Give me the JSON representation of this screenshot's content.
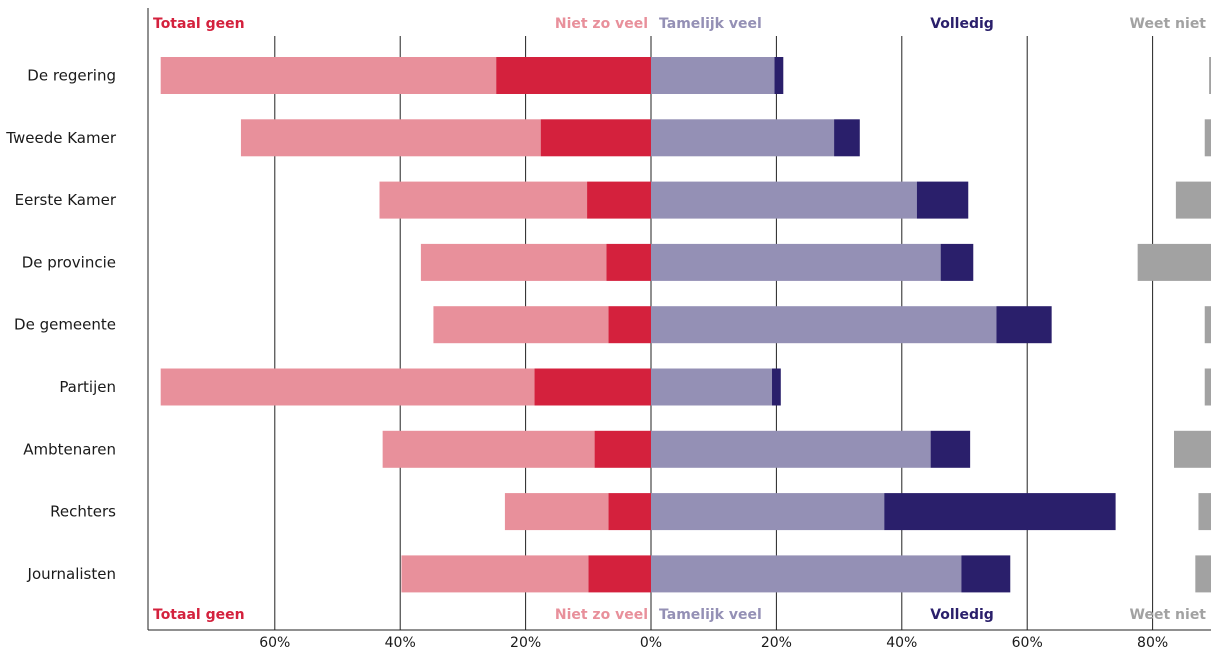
{
  "chart_data": {
    "type": "bar",
    "orientation": "horizontal-diverging",
    "stacked": true,
    "title": "",
    "xlabel": "",
    "ylabel": "",
    "categories": [
      "De regering",
      "Tweede Kamer",
      "Eerste Kamer",
      "De provincie",
      "De gemeente",
      "Partijen",
      "Ambtenaren",
      "Rechters",
      "Journalisten"
    ],
    "negative_series": [
      {
        "name": "Totaal geen",
        "color": "#d4213d",
        "values": [
          24.7,
          17.6,
          10.2,
          7.1,
          6.8,
          18.6,
          9.0,
          6.8,
          10.0
        ]
      },
      {
        "name": "Niet zo veel",
        "color": "#e8909b",
        "values": [
          53.5,
          47.8,
          33.1,
          29.6,
          27.9,
          59.6,
          33.8,
          16.5,
          29.8
        ]
      }
    ],
    "positive_series": [
      {
        "name": "Tamelijk veel",
        "color": "#9490b5",
        "values": [
          19.7,
          29.2,
          42.4,
          46.2,
          55.1,
          19.3,
          44.6,
          37.2,
          49.5
        ]
      },
      {
        "name": "Volledig",
        "color": "#2a1f6b",
        "values": [
          1.4,
          4.1,
          8.2,
          5.2,
          8.8,
          1.4,
          6.3,
          36.9,
          7.8
        ]
      }
    ],
    "dontknow_series": {
      "name": "Weet niet",
      "color": "#a2a2a2",
      "values": [
        0.3,
        1.0,
        5.6,
        11.7,
        1.0,
        1.0,
        5.9,
        2.0,
        2.5
      ]
    },
    "xticks": [
      "60%",
      "40%",
      "20%",
      "0%",
      "20%",
      "40%",
      "60%",
      "80%"
    ],
    "tick_values": [
      -60,
      -40,
      -20,
      0,
      20,
      40,
      60,
      80
    ],
    "xlim": [
      -80,
      89
    ],
    "grid": true,
    "legend_placement": "top and bottom, above each column group",
    "legend": [
      {
        "label": "Totaal geen",
        "color": "#d4213d"
      },
      {
        "label": "Niet zo veel",
        "color": "#e8909b"
      },
      {
        "label": "Tamelijk veel",
        "color": "#9490b5"
      },
      {
        "label": "Volledig",
        "color": "#2a1f6b"
      },
      {
        "label": "Weet niet",
        "color": "#a2a2a2"
      }
    ]
  }
}
